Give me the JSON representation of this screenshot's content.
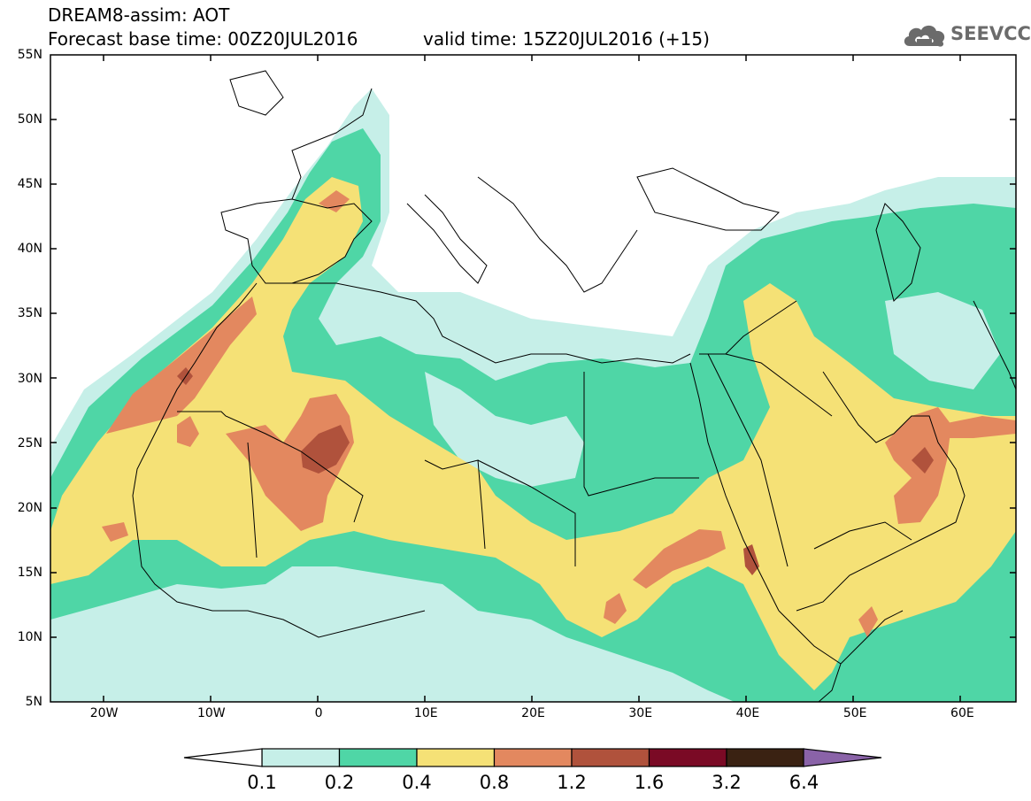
{
  "title": {
    "line1": "DREAM8-assim: AOT",
    "line2": "Forecast base time: 00Z20JUL2016",
    "valid": "valid time: 15Z20JUL2016 (+15)"
  },
  "logo": {
    "text": "SEEVCCC",
    "icon": "cloud-icon",
    "color": "#6b6b6b"
  },
  "map": {
    "lon_range": [
      -25,
      65
    ],
    "lat_range": [
      5,
      55
    ],
    "lat_labels": [
      "55N",
      "50N",
      "45N",
      "40N",
      "35N",
      "30N",
      "25N",
      "20N",
      "15N",
      "10N",
      "5N"
    ],
    "lon_labels": [
      "20W",
      "10W",
      "0",
      "10E",
      "20E",
      "30E",
      "40E",
      "50E",
      "60E"
    ],
    "variable": "AOT",
    "colors": {
      "0.1-0.2": "#c6efe8",
      "0.2-0.4": "#4fd6a6",
      "0.4-0.8": "#f5e176",
      "0.8-1.2": "#e3885f",
      "1.2-1.6": "#b0523c",
      "1.6-3.2": "#7a0a25",
      "3.2-6.4": "#3a2212",
      ">6.4": "#8a63a8"
    }
  },
  "colorbar": {
    "labels": [
      "0.1",
      "0.2",
      "0.4",
      "0.8",
      "1.2",
      "1.6",
      "3.2",
      "6.4"
    ],
    "colors": [
      "#c6efe8",
      "#4fd6a6",
      "#f5e176",
      "#e3885f",
      "#b0523c",
      "#7a0a25",
      "#3a2212"
    ],
    "low_color": "#ffffff",
    "high_color": "#8a63a8"
  }
}
